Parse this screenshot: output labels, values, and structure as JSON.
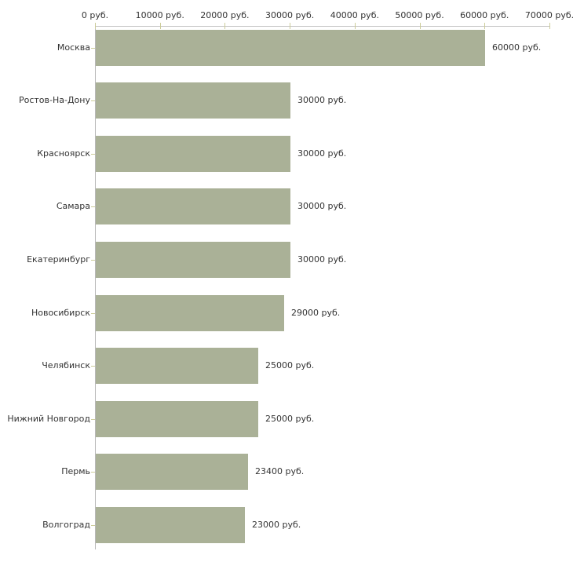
{
  "chart_data": {
    "type": "bar",
    "orientation": "horizontal",
    "title": "",
    "xlabel": "",
    "ylabel": "",
    "unit": "руб.",
    "xlim": [
      0,
      70000
    ],
    "grid": false,
    "legend": false,
    "x_tick_values": [
      0,
      10000,
      20000,
      30000,
      40000,
      50000,
      60000,
      70000
    ],
    "x_tick_labels": [
      "0 руб.",
      "10000 руб.",
      "20000 руб.",
      "30000 руб.",
      "40000 руб.",
      "50000 руб.",
      "60000 руб.",
      "70000 руб."
    ],
    "categories": [
      "Москва",
      "Ростов-На-Дону",
      "Красноярск",
      "Самара",
      "Екатеринбург",
      "Новосибирск",
      "Челябинск",
      "Нижний Новгород",
      "Пермь",
      "Волгоград"
    ],
    "values": [
      60000,
      30000,
      30000,
      30000,
      30000,
      29000,
      25000,
      25000,
      23400,
      23000
    ],
    "value_labels": [
      "60000 руб.",
      "30000 руб.",
      "30000 руб.",
      "30000 руб.",
      "30000 руб.",
      "29000 руб.",
      "25000 руб.",
      "25000 руб.",
      "23400 руб.",
      "23000 руб."
    ]
  },
  "colors": {
    "bar": "#aab197",
    "axis_line": "#c2c2c2",
    "tick_mark": "#cccc99",
    "text": "#333333",
    "background": "#ffffff"
  }
}
